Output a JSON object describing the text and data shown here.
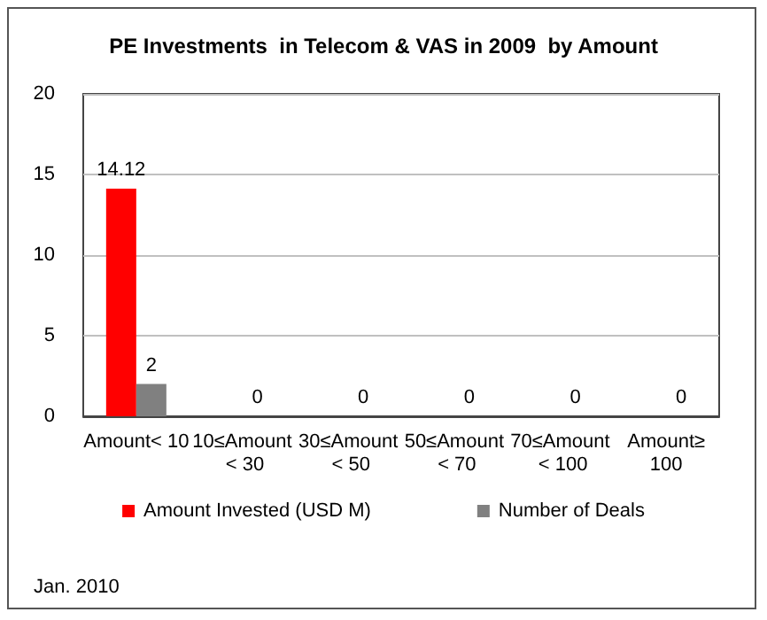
{
  "chart_data": {
    "type": "bar",
    "title": "PE Investments  in Telecom & VAS in 2009  by Amount",
    "categories": [
      "Amount< 10",
      "10≤Amount < 30",
      "30≤Amount < 50",
      "50≤Amount < 70",
      "70≤Amount < 100",
      "Amount≥100"
    ],
    "series": [
      {
        "name": "Amount Invested (USD M)",
        "color": "#ff0000",
        "values": [
          14.12,
          0,
          0,
          0,
          0,
          0
        ],
        "value_labels": [
          "14.12",
          null,
          null,
          null,
          null,
          null
        ]
      },
      {
        "name": "Number of Deals",
        "color": "#808080",
        "values": [
          2,
          0,
          0,
          0,
          0,
          0
        ],
        "value_labels": [
          "2",
          "0",
          "0",
          "0",
          "0",
          "0"
        ]
      }
    ],
    "ylim": [
      0,
      20
    ],
    "yticks": [
      0,
      5,
      10,
      15,
      20
    ],
    "grid": "y",
    "legend": "bottom",
    "annotations": [
      "Jan. 2010"
    ]
  }
}
